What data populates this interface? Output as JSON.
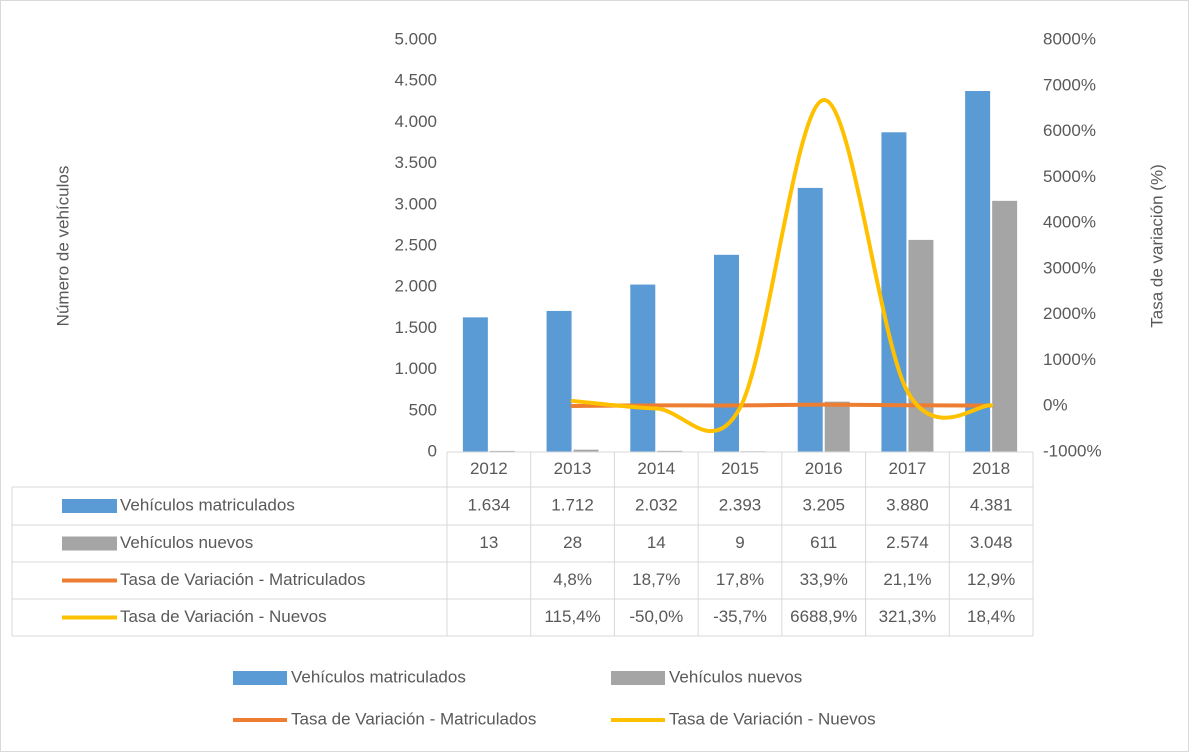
{
  "chart_data": {
    "type": "bar",
    "y_label": "Número de vehículos",
    "y2_label": "Tasa de variación (%)",
    "categories": [
      "2012",
      "2013",
      "2014",
      "2015",
      "2016",
      "2017",
      "2018"
    ],
    "ylim": [
      0,
      5000
    ],
    "yticks": [
      0,
      500,
      {
        "value": 1000,
        "label": "1.000"
      },
      {
        "value": 1500,
        "label": "1.500"
      },
      {
        "value": 2000,
        "label": "2.000"
      },
      {
        "value": 2500,
        "label": "2.500"
      },
      {
        "value": 3000,
        "label": "3.000"
      },
      {
        "value": 3500,
        "label": "3.500"
      },
      {
        "value": 4000,
        "label": "4.000"
      },
      {
        "value": 4500,
        "label": "4.500"
      },
      {
        "value": 5000,
        "label": "5.000"
      }
    ],
    "y2lim": [
      -1000,
      8000
    ],
    "y2ticks": [
      {
        "value": -1000,
        "label": "-1000%"
      },
      {
        "value": 0,
        "label": "0%"
      },
      {
        "value": 1000,
        "label": "1000%"
      },
      {
        "value": 2000,
        "label": "2000%"
      },
      {
        "value": 3000,
        "label": "3000%"
      },
      {
        "value": 4000,
        "label": "4000%"
      },
      {
        "value": 5000,
        "label": "5000%"
      },
      {
        "value": 6000,
        "label": "6000%"
      },
      {
        "value": 7000,
        "label": "7000%"
      },
      {
        "value": 8000,
        "label": "8000%"
      }
    ],
    "grid": false,
    "legend": "bottom",
    "series": [
      {
        "name": "Vehículos matriculados",
        "type": "bar",
        "color": "#5b9bd5",
        "values": [
          1634,
          1712,
          2032,
          2393,
          3205,
          3880,
          4381
        ],
        "value_labels": [
          "1.634",
          "1.712",
          "2.032",
          "2.393",
          "3.205",
          "3.880",
          "4.381"
        ]
      },
      {
        "name": "Vehículos nuevos",
        "type": "bar",
        "color": "#a5a5a5",
        "values": [
          13,
          28,
          14,
          9,
          611,
          2574,
          3048
        ],
        "value_labels": [
          "13",
          "28",
          "14",
          "9",
          "611",
          "2.574",
          "3.048"
        ]
      },
      {
        "name": "Tasa de Variación - Matriculados",
        "type": "line",
        "axis": "y2",
        "color": "#ed7d31",
        "values": [
          null,
          4.8,
          18.7,
          17.8,
          33.9,
          21.1,
          12.9
        ],
        "value_labels": [
          null,
          "4,8%",
          "18,7%",
          "17,8%",
          "33,9%",
          "21,1%",
          "12,9%"
        ]
      },
      {
        "name": "Tasa de Variación - Nuevos",
        "type": "line",
        "axis": "y2",
        "color": "#ffc000",
        "values": [
          null,
          115.4,
          -50.0,
          -35.7,
          6688.9,
          321.3,
          18.4
        ],
        "value_labels": [
          null,
          "115,4%",
          "-50,0%",
          "-35,7%",
          "6688,9%",
          "321,3%",
          "18,4%"
        ]
      }
    ]
  }
}
